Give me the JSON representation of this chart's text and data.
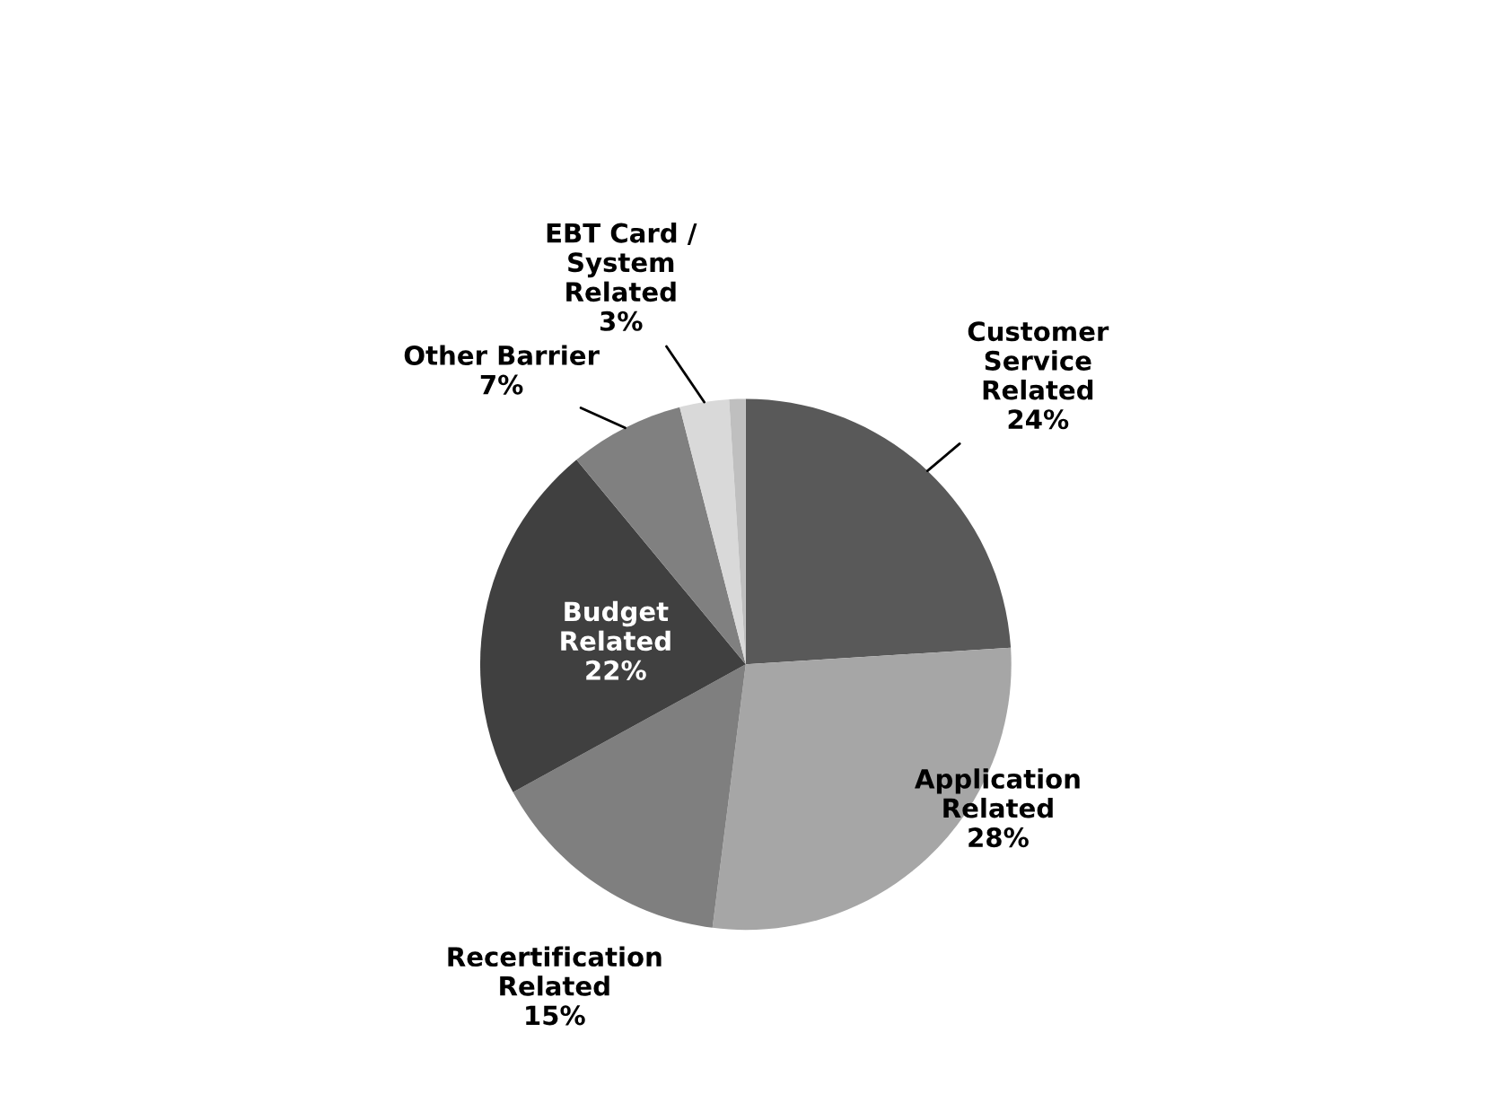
{
  "chart_data": {
    "type": "pie",
    "categories": [
      "Customer Service Related",
      "Application Related",
      "Recertification Related",
      "Budget Related",
      "Other Barrier",
      "EBT Card / System Related",
      null
    ],
    "values": [
      24,
      28,
      15,
      22,
      7,
      3,
      1
    ],
    "colors": [
      "#595959",
      "#a6a6a6",
      "#7f7f7f",
      "#404040",
      "#808080",
      "#d9d9d9",
      "#bfbfbf"
    ],
    "value_labels": [
      "24%",
      "28%",
      "15%",
      "22%",
      "7%",
      "3%",
      null
    ]
  }
}
